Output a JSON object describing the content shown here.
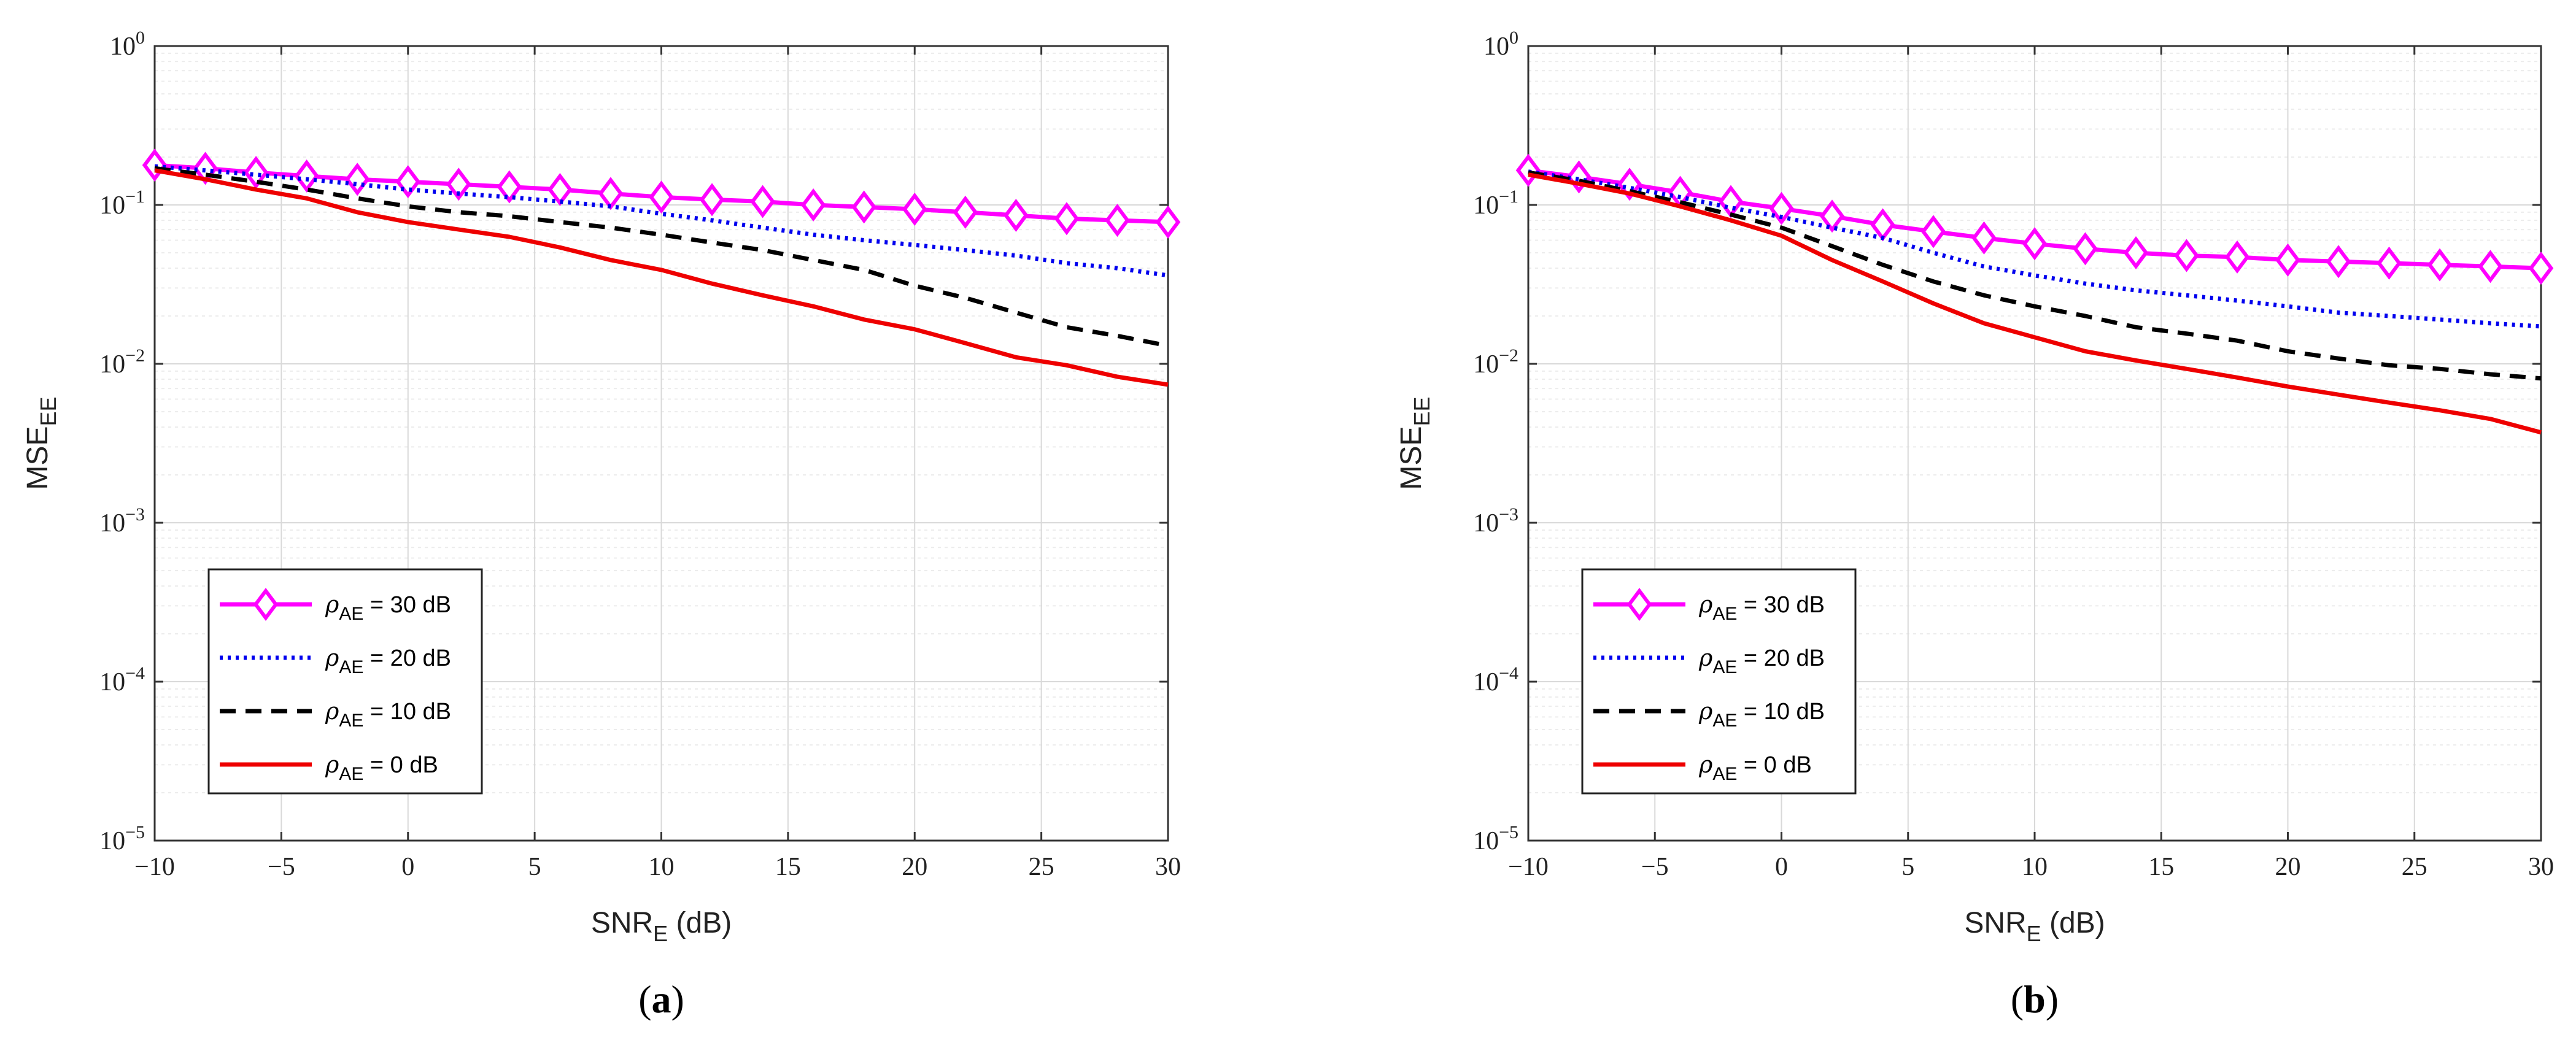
{
  "colors": {
    "rho30": "#ff00ff",
    "rho20": "#0000ee",
    "rho10": "#000000",
    "rho0": "#ee0000",
    "grid_major": "#d9d9d9",
    "grid_minor": "#ececec",
    "axis": "#333333"
  },
  "chart_data": [
    {
      "type": "line",
      "caption": "a",
      "xlabel": "SNR_E (dB)",
      "ylabel": "MSE_EE",
      "xscale": "linear",
      "yscale": "log",
      "xlim": [
        -10,
        30
      ],
      "ylim": [
        1e-05,
        1
      ],
      "xticks": [
        "−10",
        "−5",
        "0",
        "5",
        "10",
        "15",
        "20",
        "25",
        "30"
      ],
      "xtick_values": [
        -10,
        -5,
        0,
        5,
        10,
        15,
        20,
        25,
        30
      ],
      "ytick_exponents": [
        "−5",
        "−4",
        "−3",
        "−2",
        "−1",
        "0"
      ],
      "ytick_values": [
        1e-05,
        0.0001,
        0.001,
        0.01,
        0.1,
        1
      ],
      "grid": true,
      "legend_position": "lower-left",
      "x": [
        -10,
        -8,
        -6,
        -4,
        -2,
        0,
        2,
        4,
        6,
        8,
        10,
        12,
        14,
        16,
        18,
        20,
        22,
        24,
        26,
        28,
        30
      ],
      "series": [
        {
          "key": "rho30",
          "name": "ρ_AE = 30 dB",
          "label_main": "ρ",
          "label_sub": "AE",
          "label_rest": " = 30 dB",
          "style": "solid",
          "marker": "diamond",
          "values": [
            0.178,
            0.17,
            0.16,
            0.152,
            0.145,
            0.14,
            0.135,
            0.13,
            0.125,
            0.118,
            0.112,
            0.108,
            0.105,
            0.1,
            0.097,
            0.094,
            0.09,
            0.086,
            0.082,
            0.08,
            0.078
          ]
        },
        {
          "key": "rho20",
          "name": "ρ_AE = 20 dB",
          "label_main": "ρ",
          "label_sub": "AE",
          "label_rest": " = 20 dB",
          "style": "dotted",
          "marker": "none",
          "values": [
            0.175,
            0.165,
            0.155,
            0.145,
            0.135,
            0.125,
            0.118,
            0.112,
            0.105,
            0.098,
            0.088,
            0.08,
            0.072,
            0.065,
            0.06,
            0.056,
            0.052,
            0.048,
            0.043,
            0.04,
            0.036
          ]
        },
        {
          "key": "rho10",
          "name": "ρ_AE = 10 dB",
          "label_main": "ρ",
          "label_sub": "AE",
          "label_rest": " = 10 dB",
          "style": "dashed",
          "marker": "none",
          "values": [
            0.17,
            0.155,
            0.14,
            0.125,
            0.11,
            0.098,
            0.09,
            0.085,
            0.078,
            0.072,
            0.065,
            0.058,
            0.052,
            0.045,
            0.039,
            0.031,
            0.026,
            0.021,
            0.017,
            0.015,
            0.013
          ]
        },
        {
          "key": "rho0",
          "name": "ρ_AE = 0 dB",
          "label_main": "ρ",
          "label_sub": "AE",
          "label_rest": " = 0 dB",
          "style": "solid",
          "marker": "none",
          "values": [
            0.165,
            0.145,
            0.125,
            0.11,
            0.09,
            0.078,
            0.07,
            0.063,
            0.054,
            0.045,
            0.039,
            0.032,
            0.027,
            0.023,
            0.019,
            0.0165,
            0.0135,
            0.011,
            0.0098,
            0.0083,
            0.0074
          ]
        }
      ]
    },
    {
      "type": "line",
      "caption": "b",
      "xlabel": "SNR_E (dB)",
      "ylabel": "MSE_EE",
      "xscale": "linear",
      "yscale": "log",
      "xlim": [
        -10,
        30
      ],
      "ylim": [
        1e-05,
        1
      ],
      "xticks": [
        "−10",
        "−5",
        "0",
        "5",
        "10",
        "15",
        "20",
        "25",
        "30"
      ],
      "xtick_values": [
        -10,
        -5,
        0,
        5,
        10,
        15,
        20,
        25,
        30
      ],
      "ytick_exponents": [
        "−5",
        "−4",
        "−3",
        "−2",
        "−1",
        "0"
      ],
      "ytick_values": [
        1e-05,
        0.0001,
        0.001,
        0.01,
        0.1,
        1
      ],
      "grid": true,
      "legend_position": "lower-left",
      "x": [
        -10,
        -8,
        -6,
        -4,
        -2,
        0,
        2,
        4,
        6,
        8,
        10,
        12,
        14,
        16,
        18,
        20,
        22,
        24,
        26,
        28,
        30
      ],
      "series": [
        {
          "key": "rho30",
          "name": "ρ_AE = 30 dB",
          "label_main": "ρ",
          "label_sub": "AE",
          "label_rest": " = 30 dB",
          "style": "solid",
          "marker": "diamond",
          "values": [
            0.165,
            0.15,
            0.135,
            0.12,
            0.105,
            0.095,
            0.085,
            0.075,
            0.068,
            0.062,
            0.057,
            0.053,
            0.05,
            0.048,
            0.047,
            0.045,
            0.044,
            0.043,
            0.042,
            0.041,
            0.04
          ]
        },
        {
          "key": "rho20",
          "name": "ρ_AE = 20 dB",
          "label_main": "ρ",
          "label_sub": "AE",
          "label_rest": " = 20 dB",
          "style": "dotted",
          "marker": "none",
          "values": [
            0.162,
            0.145,
            0.128,
            0.112,
            0.096,
            0.084,
            0.072,
            0.062,
            0.05,
            0.041,
            0.036,
            0.032,
            0.029,
            0.027,
            0.025,
            0.023,
            0.021,
            0.02,
            0.019,
            0.018,
            0.0172
          ]
        },
        {
          "key": "rho10",
          "name": "ρ_AE = 10 dB",
          "label_main": "ρ",
          "label_sub": "AE",
          "label_rest": " = 10 dB",
          "style": "dashed",
          "marker": "none",
          "values": [
            0.16,
            0.142,
            0.122,
            0.104,
            0.087,
            0.072,
            0.055,
            0.042,
            0.033,
            0.027,
            0.023,
            0.02,
            0.017,
            0.0155,
            0.014,
            0.012,
            0.0108,
            0.0098,
            0.0093,
            0.0086,
            0.0081
          ]
        },
        {
          "key": "rho0",
          "name": "ρ_AE = 0 dB",
          "label_main": "ρ",
          "label_sub": "AE",
          "label_rest": " = 0 dB",
          "style": "solid",
          "marker": "none",
          "values": [
            0.155,
            0.136,
            0.118,
            0.098,
            0.08,
            0.064,
            0.045,
            0.033,
            0.024,
            0.018,
            0.0147,
            0.012,
            0.0105,
            0.0093,
            0.0082,
            0.0072,
            0.0064,
            0.0057,
            0.0051,
            0.0045,
            0.0037
          ]
        }
      ]
    }
  ]
}
